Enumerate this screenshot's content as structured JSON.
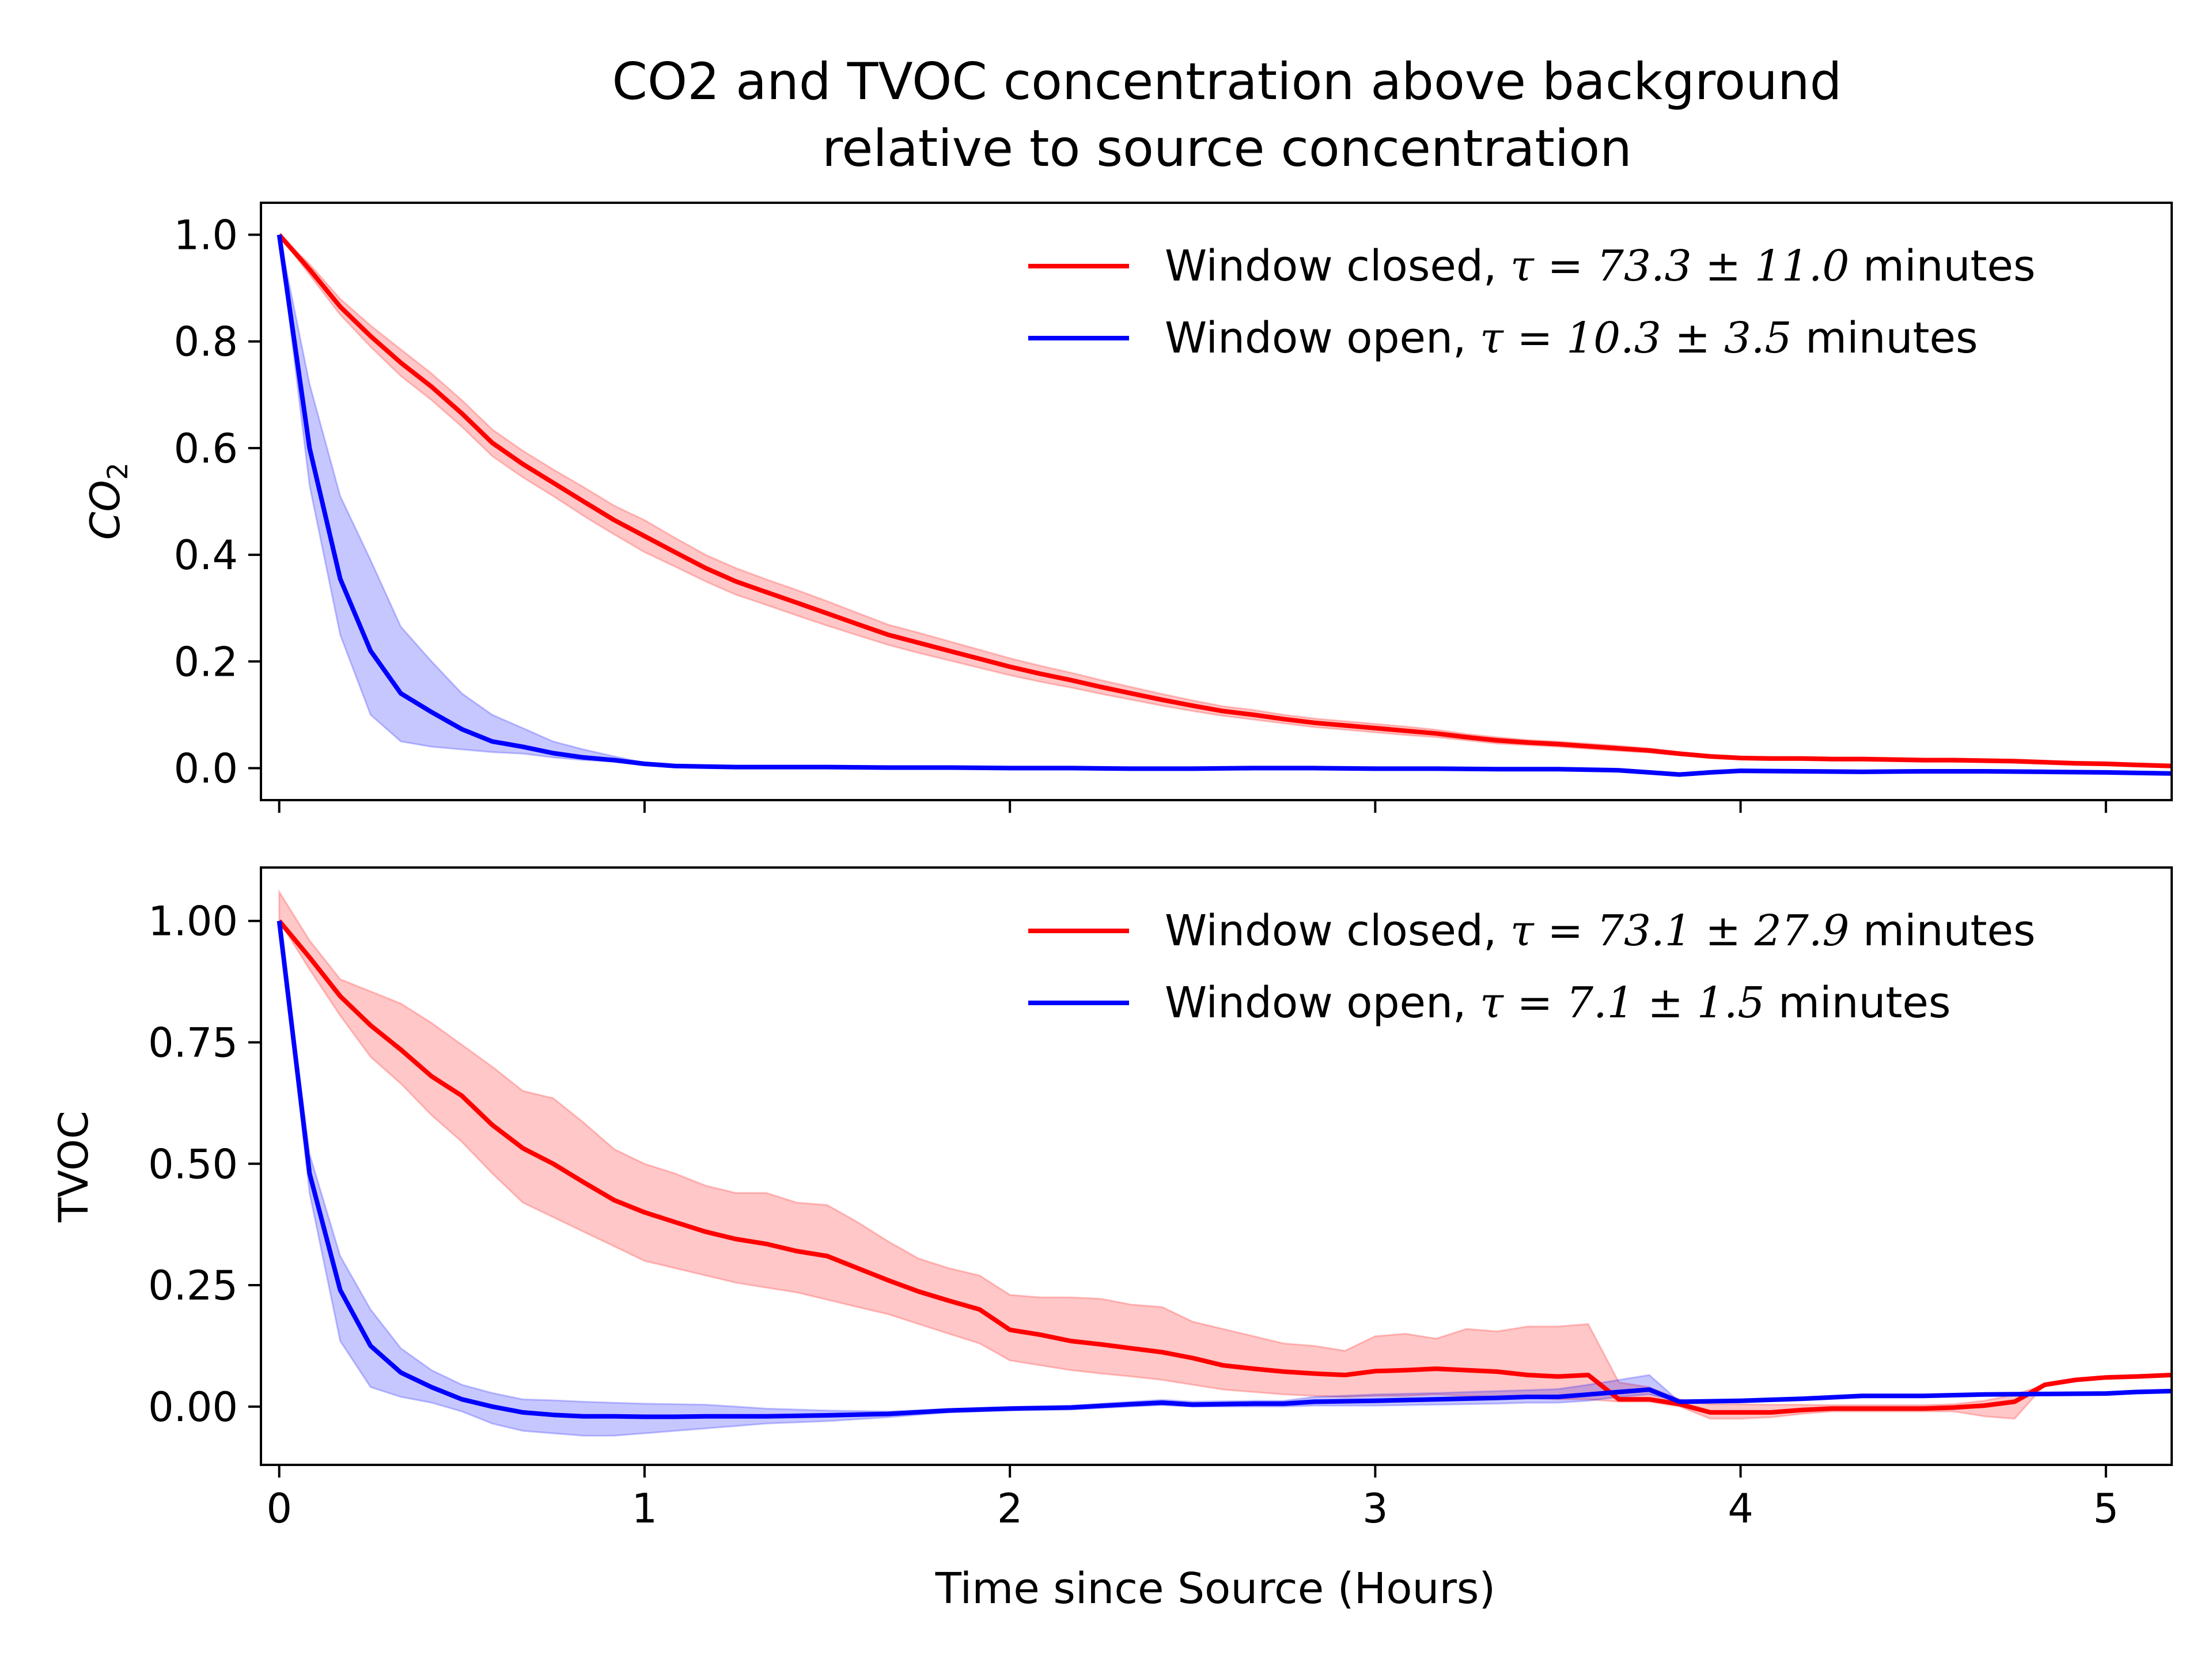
{
  "figure": {
    "title_line1": "CO2 and TVOC concentration above background",
    "title_line2": "relative to source concentration",
    "xlabel": "Time since Source (Hours)"
  },
  "colors": {
    "closed": "#ff0000",
    "open": "#0000ff",
    "closed_band": "rgba(255,0,0,0.22)",
    "open_band": "rgba(0,0,255,0.22)"
  },
  "chart_data": [
    {
      "type": "line",
      "panel": "top",
      "ylabel_main": "CO",
      "ylabel_sub": "2",
      "xlim": [
        -0.05,
        5.18
      ],
      "ylim": [
        -0.06,
        1.06
      ],
      "xticks": [
        0,
        1,
        2,
        3,
        4,
        5
      ],
      "xtick_labels_visible": false,
      "yticks": [
        0.0,
        0.2,
        0.4,
        0.6,
        0.8,
        1.0
      ],
      "ytick_labels": [
        "0.0",
        "0.2",
        "0.4",
        "0.6",
        "0.8",
        "1.0"
      ],
      "legend_position": "top-right",
      "series": [
        {
          "name": "Window closed, τ = 73.3 ± 11.0 minutes",
          "legend_prefix": "Window closed, ",
          "legend_math": "τ = 73.3 ± 11.0",
          "legend_suffix": " minutes",
          "color": "red",
          "x": [
            0,
            0.083,
            0.167,
            0.25,
            0.333,
            0.417,
            0.5,
            0.583,
            0.667,
            0.75,
            0.833,
            0.917,
            1.0,
            1.083,
            1.167,
            1.25,
            1.333,
            1.417,
            1.5,
            1.583,
            1.667,
            1.75,
            1.833,
            1.917,
            2.0,
            2.083,
            2.167,
            2.25,
            2.333,
            2.417,
            2.5,
            2.583,
            2.667,
            2.75,
            2.833,
            2.917,
            3.0,
            3.083,
            3.167,
            3.25,
            3.333,
            3.417,
            3.5,
            3.583,
            3.667,
            3.75,
            3.833,
            3.917,
            4.0,
            4.083,
            4.167,
            4.25,
            4.333,
            4.417,
            4.5,
            4.583,
            4.667,
            4.75,
            4.833,
            4.917,
            5.0,
            5.083,
            5.18
          ],
          "y": [
            1.0,
            0.935,
            0.865,
            0.81,
            0.76,
            0.715,
            0.665,
            0.61,
            0.57,
            0.535,
            0.5,
            0.465,
            0.435,
            0.405,
            0.375,
            0.35,
            0.33,
            0.31,
            0.29,
            0.27,
            0.25,
            0.235,
            0.22,
            0.205,
            0.19,
            0.177,
            0.165,
            0.152,
            0.14,
            0.128,
            0.117,
            0.107,
            0.1,
            0.092,
            0.085,
            0.08,
            0.075,
            0.07,
            0.065,
            0.058,
            0.052,
            0.048,
            0.045,
            0.041,
            0.037,
            0.033,
            0.027,
            0.022,
            0.019,
            0.018,
            0.018,
            0.017,
            0.017,
            0.016,
            0.015,
            0.015,
            0.014,
            0.013,
            0.011,
            0.009,
            0.008,
            0.006,
            0.004
          ],
          "y_low": [
            1.0,
            0.925,
            0.85,
            0.79,
            0.735,
            0.69,
            0.64,
            0.585,
            0.545,
            0.51,
            0.473,
            0.438,
            0.405,
            0.378,
            0.35,
            0.325,
            0.306,
            0.286,
            0.267,
            0.249,
            0.231,
            0.216,
            0.202,
            0.188,
            0.174,
            0.162,
            0.151,
            0.139,
            0.128,
            0.117,
            0.107,
            0.098,
            0.091,
            0.084,
            0.077,
            0.072,
            0.067,
            0.062,
            0.058,
            0.052,
            0.046,
            0.043,
            0.04,
            0.036,
            0.032,
            0.029,
            0.024,
            0.019,
            0.016,
            0.015,
            0.015,
            0.014,
            0.014,
            0.013,
            0.012,
            0.012,
            0.011,
            0.01,
            0.008,
            0.006,
            0.005,
            0.003,
            0.001
          ],
          "y_high": [
            1.0,
            0.945,
            0.88,
            0.83,
            0.785,
            0.74,
            0.69,
            0.635,
            0.595,
            0.56,
            0.527,
            0.492,
            0.465,
            0.432,
            0.4,
            0.375,
            0.354,
            0.334,
            0.313,
            0.291,
            0.269,
            0.254,
            0.238,
            0.222,
            0.206,
            0.192,
            0.179,
            0.165,
            0.152,
            0.139,
            0.127,
            0.116,
            0.109,
            0.1,
            0.093,
            0.088,
            0.083,
            0.078,
            0.072,
            0.064,
            0.058,
            0.053,
            0.05,
            0.046,
            0.042,
            0.037,
            0.03,
            0.025,
            0.022,
            0.021,
            0.021,
            0.02,
            0.02,
            0.019,
            0.018,
            0.018,
            0.017,
            0.016,
            0.014,
            0.012,
            0.011,
            0.009,
            0.007
          ]
        },
        {
          "name": "Window open, τ = 10.3 ± 3.5 minutes",
          "legend_prefix": "Window open, ",
          "legend_math": "τ = 10.3 ± 3.5",
          "legend_suffix": " minutes",
          "color": "blue",
          "x": [
            0,
            0.083,
            0.167,
            0.25,
            0.333,
            0.417,
            0.5,
            0.583,
            0.667,
            0.75,
            0.833,
            0.917,
            1.0,
            1.083,
            1.167,
            1.25,
            1.333,
            1.5,
            1.667,
            1.833,
            2.0,
            2.167,
            2.333,
            2.5,
            2.667,
            2.833,
            3.0,
            3.167,
            3.333,
            3.5,
            3.667,
            3.75,
            3.833,
            3.917,
            4.0,
            4.167,
            4.333,
            4.5,
            4.667,
            4.833,
            5.0,
            5.18
          ],
          "y": [
            1.0,
            0.6,
            0.355,
            0.22,
            0.14,
            0.105,
            0.073,
            0.05,
            0.04,
            0.028,
            0.02,
            0.015,
            0.008,
            0.004,
            0.003,
            0.002,
            0.002,
            0.002,
            0.001,
            0.001,
            0.0,
            0.0,
            -0.001,
            -0.001,
            0.0,
            0.0,
            -0.001,
            -0.001,
            -0.002,
            -0.002,
            -0.004,
            -0.008,
            -0.012,
            -0.008,
            -0.005,
            -0.006,
            -0.007,
            -0.006,
            -0.006,
            -0.007,
            -0.008,
            -0.01
          ],
          "y_low": [
            1.0,
            0.53,
            0.25,
            0.1,
            0.05,
            0.04,
            0.035,
            0.03,
            0.027,
            0.02,
            0.015,
            0.012,
            0.008,
            0.004,
            0.003,
            0.002,
            0.002,
            0.002,
            0.001,
            0.001,
            0.0,
            0.0,
            -0.001,
            -0.001,
            0.0,
            0.0,
            -0.001,
            -0.001,
            -0.002,
            -0.002,
            -0.004,
            -0.008,
            -0.012,
            -0.008,
            -0.005,
            -0.006,
            -0.007,
            -0.006,
            -0.006,
            -0.007,
            -0.008,
            -0.01
          ],
          "y_high": [
            1.0,
            0.72,
            0.51,
            0.39,
            0.265,
            0.2,
            0.14,
            0.1,
            0.075,
            0.05,
            0.035,
            0.022,
            0.01,
            0.005,
            0.004,
            0.003,
            0.002,
            0.002,
            0.001,
            0.001,
            0.0,
            0.0,
            -0.001,
            -0.001,
            0.0,
            0.0,
            -0.001,
            -0.001,
            -0.002,
            -0.002,
            -0.004,
            -0.008,
            -0.012,
            -0.008,
            -0.005,
            -0.006,
            -0.007,
            -0.006,
            -0.006,
            -0.007,
            -0.008,
            -0.01
          ]
        }
      ]
    },
    {
      "type": "line",
      "panel": "bottom",
      "ylabel": "TVOC",
      "xlim": [
        -0.05,
        5.18
      ],
      "ylim": [
        -0.12,
        1.11
      ],
      "xticks": [
        0,
        1,
        2,
        3,
        4,
        5
      ],
      "xtick_labels": [
        "0",
        "1",
        "2",
        "3",
        "4",
        "5"
      ],
      "yticks": [
        0.0,
        0.25,
        0.5,
        0.75,
        1.0
      ],
      "ytick_labels": [
        "0.00",
        "0.25",
        "0.50",
        "0.75",
        "1.00"
      ],
      "legend_position": "top-right",
      "series": [
        {
          "name": "Window closed, τ = 73.1 ± 27.9 minutes",
          "legend_prefix": "Window closed, ",
          "legend_math": "τ = 73.1 ± 27.9",
          "legend_suffix": " minutes",
          "color": "red",
          "x": [
            0,
            0.083,
            0.167,
            0.25,
            0.333,
            0.417,
            0.5,
            0.583,
            0.667,
            0.75,
            0.833,
            0.917,
            1.0,
            1.083,
            1.167,
            1.25,
            1.333,
            1.417,
            1.5,
            1.583,
            1.667,
            1.75,
            1.833,
            1.917,
            2.0,
            2.083,
            2.167,
            2.25,
            2.333,
            2.417,
            2.5,
            2.583,
            2.667,
            2.75,
            2.833,
            2.917,
            3.0,
            3.083,
            3.167,
            3.25,
            3.333,
            3.417,
            3.5,
            3.583,
            3.667,
            3.75,
            3.833,
            3.917,
            4.0,
            4.083,
            4.167,
            4.25,
            4.333,
            4.417,
            4.5,
            4.583,
            4.667,
            4.75,
            4.833,
            4.917,
            5.0,
            5.083,
            5.18
          ],
          "y": [
            1.0,
            0.925,
            0.845,
            0.785,
            0.735,
            0.68,
            0.64,
            0.58,
            0.532,
            0.5,
            0.462,
            0.425,
            0.4,
            0.38,
            0.36,
            0.345,
            0.335,
            0.32,
            0.31,
            0.285,
            0.26,
            0.237,
            0.218,
            0.2,
            0.158,
            0.148,
            0.135,
            0.128,
            0.12,
            0.112,
            0.1,
            0.085,
            0.078,
            0.072,
            0.068,
            0.065,
            0.073,
            0.075,
            0.078,
            0.075,
            0.072,
            0.065,
            0.062,
            0.065,
            0.015,
            0.015,
            0.005,
            -0.012,
            -0.012,
            -0.012,
            -0.007,
            -0.004,
            -0.004,
            -0.004,
            -0.004,
            -0.002,
            0.002,
            0.01,
            0.045,
            0.055,
            0.06,
            0.062,
            0.065
          ],
          "y_low": [
            1.0,
            0.9,
            0.805,
            0.72,
            0.665,
            0.6,
            0.545,
            0.48,
            0.42,
            0.39,
            0.36,
            0.33,
            0.3,
            0.285,
            0.27,
            0.255,
            0.245,
            0.235,
            0.22,
            0.205,
            0.19,
            0.17,
            0.15,
            0.13,
            0.095,
            0.085,
            0.075,
            0.068,
            0.062,
            0.055,
            0.045,
            0.035,
            0.03,
            0.025,
            0.022,
            0.02,
            0.022,
            0.022,
            0.025,
            0.022,
            0.02,
            0.018,
            0.015,
            0.015,
            0.01,
            0.01,
            0.0,
            -0.025,
            -0.025,
            -0.022,
            -0.015,
            -0.01,
            -0.01,
            -0.01,
            -0.01,
            -0.01,
            -0.02,
            -0.025,
            0.045,
            0.055,
            0.06,
            0.062,
            0.065
          ],
          "y_high": [
            1.06,
            0.96,
            0.88,
            0.855,
            0.83,
            0.79,
            0.745,
            0.7,
            0.65,
            0.635,
            0.585,
            0.53,
            0.5,
            0.48,
            0.455,
            0.44,
            0.44,
            0.42,
            0.415,
            0.38,
            0.34,
            0.305,
            0.285,
            0.27,
            0.23,
            0.225,
            0.225,
            0.222,
            0.21,
            0.205,
            0.175,
            0.16,
            0.145,
            0.13,
            0.125,
            0.115,
            0.145,
            0.15,
            0.14,
            0.16,
            0.155,
            0.165,
            0.165,
            0.17,
            0.05,
            0.04,
            0.015,
            0.005,
            0.005,
            0.004,
            0.004,
            0.003,
            0.003,
            0.003,
            0.003,
            0.005,
            0.012,
            0.025,
            0.045,
            0.055,
            0.06,
            0.062,
            0.065
          ]
        },
        {
          "name": "Window open, τ = 7.1 ± 1.5 minutes",
          "legend_prefix": "Window open, ",
          "legend_math": "τ = 7.1 ± 1.5",
          "legend_suffix": " minutes",
          "color": "blue",
          "x": [
            0,
            0.083,
            0.167,
            0.25,
            0.333,
            0.417,
            0.5,
            0.583,
            0.667,
            0.75,
            0.833,
            0.917,
            1.0,
            1.083,
            1.167,
            1.25,
            1.333,
            1.5,
            1.667,
            1.833,
            2.0,
            2.167,
            2.333,
            2.417,
            2.5,
            2.667,
            2.75,
            2.833,
            3.0,
            3.167,
            3.333,
            3.417,
            3.5,
            3.583,
            3.667,
            3.75,
            3.833,
            4.0,
            4.167,
            4.333,
            4.5,
            4.667,
            4.833,
            5.0,
            5.083,
            5.18
          ],
          "y": [
            1.0,
            0.48,
            0.24,
            0.125,
            0.07,
            0.04,
            0.015,
            0.0,
            -0.012,
            -0.017,
            -0.02,
            -0.02,
            -0.021,
            -0.021,
            -0.02,
            -0.02,
            -0.02,
            -0.018,
            -0.015,
            -0.008,
            -0.004,
            -0.002,
            0.005,
            0.008,
            0.004,
            0.006,
            0.006,
            0.01,
            0.012,
            0.015,
            0.018,
            0.02,
            0.02,
            0.025,
            0.03,
            0.035,
            0.01,
            0.012,
            0.016,
            0.022,
            0.022,
            0.025,
            0.026,
            0.027,
            0.03,
            0.032
          ],
          "y_low": [
            1.0,
            0.44,
            0.135,
            0.04,
            0.02,
            0.008,
            -0.01,
            -0.035,
            -0.05,
            -0.055,
            -0.06,
            -0.06,
            -0.055,
            -0.05,
            -0.045,
            -0.04,
            -0.035,
            -0.03,
            -0.022,
            -0.012,
            -0.008,
            -0.006,
            0.0,
            0.003,
            0.0,
            0.0,
            0.0,
            0.002,
            0.002,
            0.004,
            0.006,
            0.008,
            0.008,
            0.012,
            0.02,
            0.025,
            0.01,
            0.012,
            0.016,
            0.022,
            0.022,
            0.025,
            0.026,
            0.027,
            0.03,
            0.032
          ],
          "y_high": [
            1.0,
            0.52,
            0.31,
            0.2,
            0.12,
            0.075,
            0.045,
            0.028,
            0.015,
            0.013,
            0.01,
            0.008,
            0.006,
            0.005,
            0.004,
            0.0,
            -0.004,
            -0.008,
            -0.01,
            -0.005,
            -0.002,
            0.002,
            0.01,
            0.014,
            0.01,
            0.012,
            0.012,
            0.02,
            0.025,
            0.028,
            0.032,
            0.034,
            0.036,
            0.045,
            0.055,
            0.065,
            0.01,
            0.012,
            0.016,
            0.022,
            0.022,
            0.025,
            0.026,
            0.027,
            0.03,
            0.032
          ]
        }
      ]
    }
  ]
}
